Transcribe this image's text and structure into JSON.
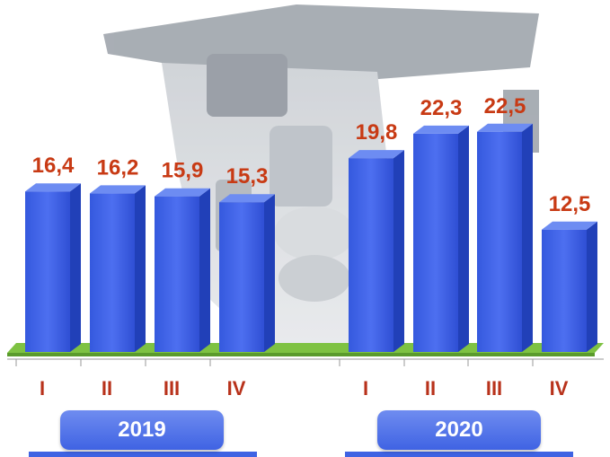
{
  "chart_data": {
    "type": "bar",
    "groups": [
      {
        "label": "2019",
        "categories": [
          "I",
          "II",
          "III",
          "IV"
        ],
        "values": [
          16.4,
          16.2,
          15.9,
          15.3
        ]
      },
      {
        "label": "2020",
        "categories": [
          "I",
          "II",
          "III",
          "IV"
        ],
        "values": [
          19.8,
          22.3,
          22.5,
          12.5
        ]
      }
    ],
    "data_labels": {
      "2019": [
        "16,4",
        "16,2",
        "15,9",
        "15,3"
      ],
      "2020": [
        "19,8",
        "22,3",
        "22,5",
        "12,5"
      ]
    },
    "ylim": [
      0,
      25
    ],
    "grid": false,
    "bar_color": "#3f63e3",
    "floor_color": "#7ec242",
    "label_color": "#c83a14",
    "tick_color": "#b8321b"
  }
}
